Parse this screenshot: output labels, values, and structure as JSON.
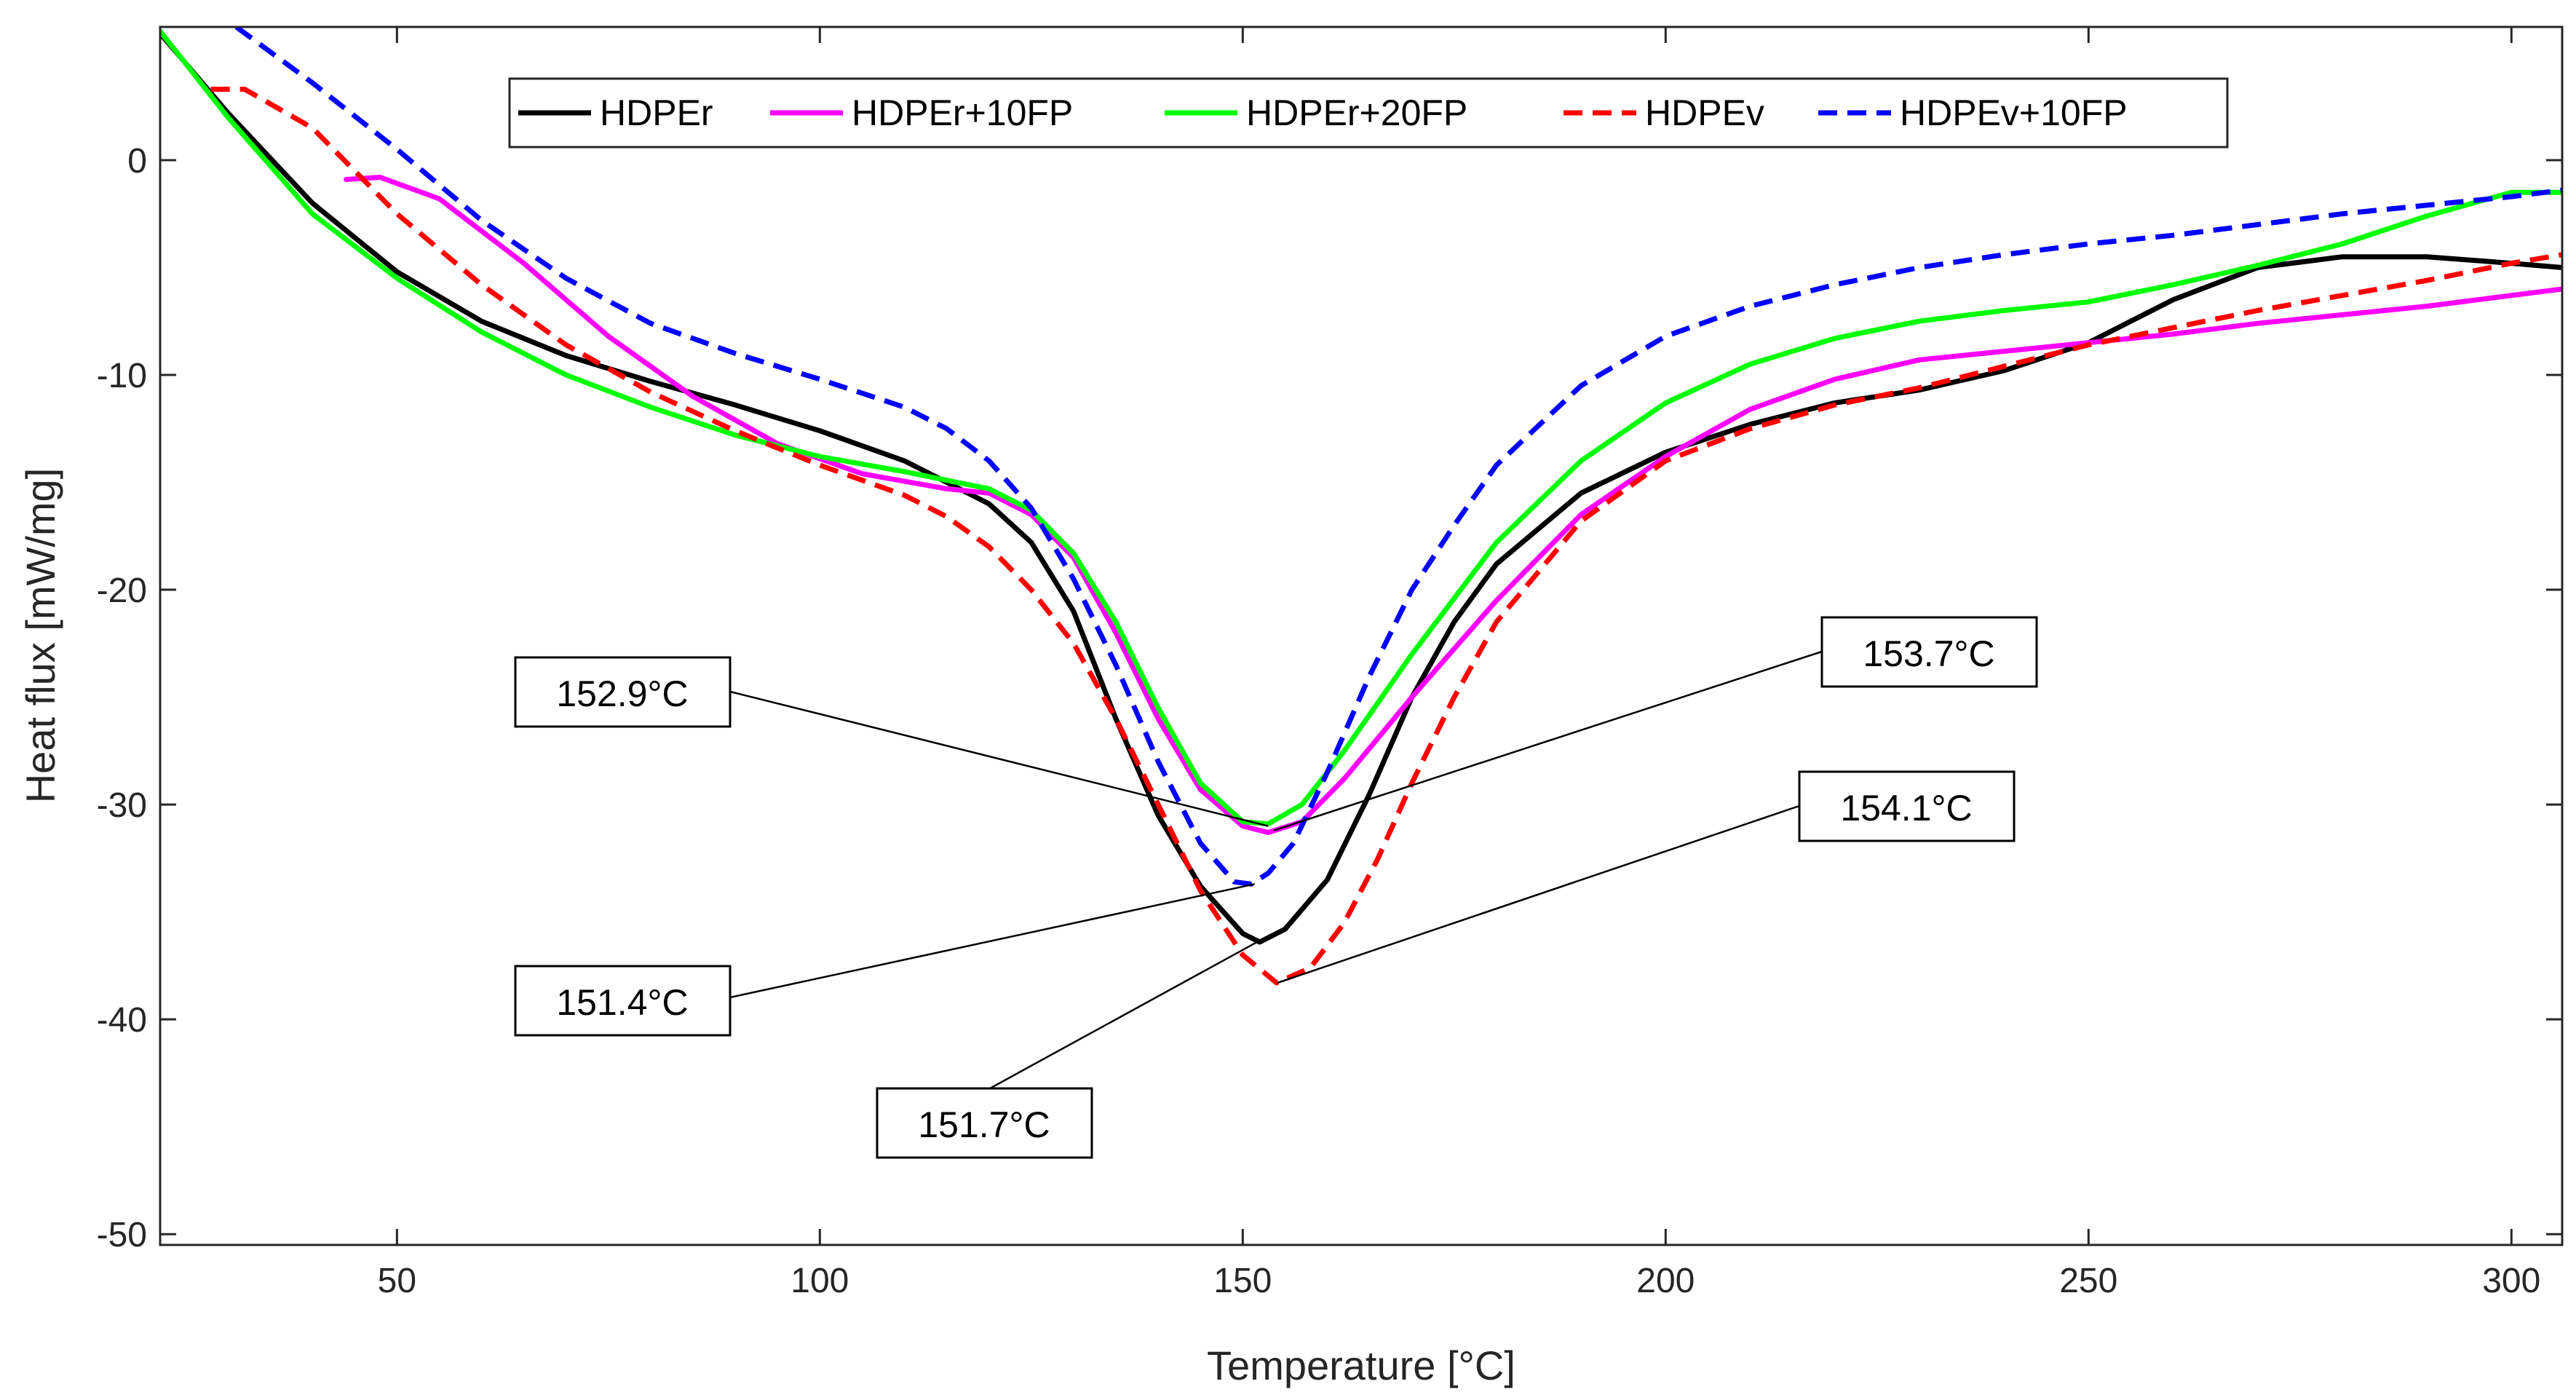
{
  "chart_data": {
    "type": "line",
    "title": "",
    "xlabel": "Temperature [°C]",
    "ylabel": "Heat flux [mW/mg]",
    "xlim": [
      22,
      306
    ],
    "ylim": [
      -50.5,
      6.2
    ],
    "xticks": [
      50,
      100,
      150,
      200,
      250,
      300
    ],
    "yticks": [
      -50,
      -40,
      -30,
      -20,
      -10,
      0
    ],
    "grid": false,
    "legend_position": "top",
    "series": [
      {
        "name": "HDPEr",
        "color": "#000000",
        "dash": "solid",
        "points": [
          [
            22,
            5.9
          ],
          [
            30,
            2.2
          ],
          [
            40,
            -2.0
          ],
          [
            50,
            -5.2
          ],
          [
            60,
            -7.5
          ],
          [
            70,
            -9.1
          ],
          [
            80,
            -10.3
          ],
          [
            90,
            -11.4
          ],
          [
            100,
            -12.6
          ],
          [
            110,
            -14.0
          ],
          [
            120,
            -16.0
          ],
          [
            125,
            -17.8
          ],
          [
            130,
            -21.0
          ],
          [
            135,
            -26.0
          ],
          [
            140,
            -30.5
          ],
          [
            145,
            -33.8
          ],
          [
            150,
            -36.0
          ],
          [
            152,
            -36.4
          ],
          [
            155,
            -35.8
          ],
          [
            160,
            -33.5
          ],
          [
            165,
            -29.5
          ],
          [
            170,
            -25.0
          ],
          [
            175,
            -21.5
          ],
          [
            180,
            -18.8
          ],
          [
            190,
            -15.5
          ],
          [
            200,
            -13.6
          ],
          [
            210,
            -12.3
          ],
          [
            220,
            -11.3
          ],
          [
            230,
            -10.7
          ],
          [
            240,
            -9.8
          ],
          [
            250,
            -8.5
          ],
          [
            260,
            -6.5
          ],
          [
            270,
            -5.0
          ],
          [
            280,
            -4.5
          ],
          [
            290,
            -4.5
          ],
          [
            300,
            -4.8
          ],
          [
            306,
            -5.0
          ]
        ]
      },
      {
        "name": "HDPEr+10FP",
        "color": "#ff00ff",
        "dash": "solid",
        "points": [
          [
            44,
            -0.9
          ],
          [
            48,
            -0.8
          ],
          [
            55,
            -1.8
          ],
          [
            65,
            -4.8
          ],
          [
            75,
            -8.2
          ],
          [
            85,
            -11.0
          ],
          [
            95,
            -13.2
          ],
          [
            105,
            -14.6
          ],
          [
            115,
            -15.3
          ],
          [
            120,
            -15.5
          ],
          [
            125,
            -16.5
          ],
          [
            130,
            -18.5
          ],
          [
            135,
            -22.0
          ],
          [
            140,
            -26.0
          ],
          [
            145,
            -29.3
          ],
          [
            150,
            -31.0
          ],
          [
            153,
            -31.3
          ],
          [
            157,
            -30.8
          ],
          [
            162,
            -28.8
          ],
          [
            170,
            -25.0
          ],
          [
            180,
            -20.5
          ],
          [
            190,
            -16.5
          ],
          [
            200,
            -13.8
          ],
          [
            210,
            -11.6
          ],
          [
            220,
            -10.2
          ],
          [
            230,
            -9.3
          ],
          [
            240,
            -8.9
          ],
          [
            250,
            -8.5
          ],
          [
            260,
            -8.1
          ],
          [
            270,
            -7.6
          ],
          [
            280,
            -7.2
          ],
          [
            290,
            -6.8
          ],
          [
            300,
            -6.3
          ],
          [
            306,
            -6.0
          ]
        ]
      },
      {
        "name": "HDPEr+20FP",
        "color": "#00ff00",
        "dash": "solid",
        "points": [
          [
            22,
            6.0
          ],
          [
            30,
            2.0
          ],
          [
            40,
            -2.5
          ],
          [
            50,
            -5.5
          ],
          [
            60,
            -8.0
          ],
          [
            70,
            -10.0
          ],
          [
            80,
            -11.5
          ],
          [
            90,
            -12.8
          ],
          [
            100,
            -13.8
          ],
          [
            110,
            -14.5
          ],
          [
            120,
            -15.3
          ],
          [
            125,
            -16.3
          ],
          [
            130,
            -18.3
          ],
          [
            135,
            -21.5
          ],
          [
            140,
            -25.5
          ],
          [
            145,
            -29.0
          ],
          [
            150,
            -30.8
          ],
          [
            153,
            -30.9
          ],
          [
            157,
            -30.0
          ],
          [
            162,
            -27.5
          ],
          [
            170,
            -23.0
          ],
          [
            180,
            -17.8
          ],
          [
            190,
            -14.0
          ],
          [
            200,
            -11.3
          ],
          [
            210,
            -9.5
          ],
          [
            220,
            -8.3
          ],
          [
            230,
            -7.5
          ],
          [
            240,
            -7.0
          ],
          [
            250,
            -6.6
          ],
          [
            260,
            -5.8
          ],
          [
            270,
            -4.9
          ],
          [
            280,
            -3.9
          ],
          [
            290,
            -2.6
          ],
          [
            300,
            -1.5
          ],
          [
            306,
            -1.5
          ]
        ]
      },
      {
        "name": "HDPEv",
        "color": "#ff0000",
        "dash": "dashed",
        "points": [
          [
            28,
            3.3
          ],
          [
            32,
            3.3
          ],
          [
            40,
            1.5
          ],
          [
            50,
            -2.5
          ],
          [
            60,
            -5.8
          ],
          [
            70,
            -8.6
          ],
          [
            80,
            -10.8
          ],
          [
            90,
            -12.6
          ],
          [
            100,
            -14.2
          ],
          [
            110,
            -15.6
          ],
          [
            115,
            -16.6
          ],
          [
            120,
            -18.0
          ],
          [
            125,
            -20.0
          ],
          [
            130,
            -22.5
          ],
          [
            135,
            -26.0
          ],
          [
            140,
            -30.0
          ],
          [
            145,
            -34.0
          ],
          [
            150,
            -37.0
          ],
          [
            154,
            -38.3
          ],
          [
            158,
            -37.6
          ],
          [
            162,
            -35.5
          ],
          [
            166,
            -32.5
          ],
          [
            170,
            -29.0
          ],
          [
            175,
            -25.0
          ],
          [
            180,
            -21.5
          ],
          [
            190,
            -16.8
          ],
          [
            200,
            -14.0
          ],
          [
            210,
            -12.5
          ],
          [
            220,
            -11.4
          ],
          [
            230,
            -10.6
          ],
          [
            240,
            -9.6
          ],
          [
            250,
            -8.6
          ],
          [
            260,
            -7.8
          ],
          [
            270,
            -7.0
          ],
          [
            280,
            -6.3
          ],
          [
            290,
            -5.6
          ],
          [
            300,
            -4.8
          ],
          [
            306,
            -4.4
          ]
        ]
      },
      {
        "name": "HDPEv+10FP",
        "color": "#0000ff",
        "dash": "dashed",
        "points": [
          [
            31,
            6.2
          ],
          [
            40,
            3.6
          ],
          [
            50,
            0.5
          ],
          [
            60,
            -2.8
          ],
          [
            70,
            -5.5
          ],
          [
            80,
            -7.6
          ],
          [
            90,
            -9.0
          ],
          [
            100,
            -10.2
          ],
          [
            110,
            -11.5
          ],
          [
            115,
            -12.5
          ],
          [
            120,
            -14.0
          ],
          [
            125,
            -16.2
          ],
          [
            130,
            -19.5
          ],
          [
            135,
            -23.5
          ],
          [
            140,
            -28.0
          ],
          [
            145,
            -31.8
          ],
          [
            149,
            -33.6
          ],
          [
            151,
            -33.7
          ],
          [
            153,
            -33.2
          ],
          [
            156,
            -31.8
          ],
          [
            160,
            -28.5
          ],
          [
            165,
            -24.0
          ],
          [
            170,
            -20.0
          ],
          [
            175,
            -17.0
          ],
          [
            180,
            -14.2
          ],
          [
            190,
            -10.5
          ],
          [
            200,
            -8.2
          ],
          [
            210,
            -6.8
          ],
          [
            220,
            -5.8
          ],
          [
            230,
            -5.0
          ],
          [
            240,
            -4.4
          ],
          [
            250,
            -3.9
          ],
          [
            260,
            -3.5
          ],
          [
            270,
            -3.0
          ],
          [
            280,
            -2.5
          ],
          [
            290,
            -2.1
          ],
          [
            300,
            -1.7
          ],
          [
            306,
            -1.4
          ]
        ]
      }
    ],
    "annotations": [
      {
        "id": "a1529",
        "text": "152.9°C",
        "tip": [
          153,
          -31.0
        ]
      },
      {
        "id": "a1537",
        "text": "153.7°C",
        "tip": [
          153.7,
          -31.2
        ]
      },
      {
        "id": "a1541",
        "text": "154.1°C",
        "tip": [
          154.1,
          -38.3
        ]
      },
      {
        "id": "a1514",
        "text": "151.4°C",
        "tip": [
          151.4,
          -33.7
        ]
      },
      {
        "id": "a1517",
        "text": "151.7°C",
        "tip": [
          151.7,
          -36.4
        ]
      }
    ]
  }
}
